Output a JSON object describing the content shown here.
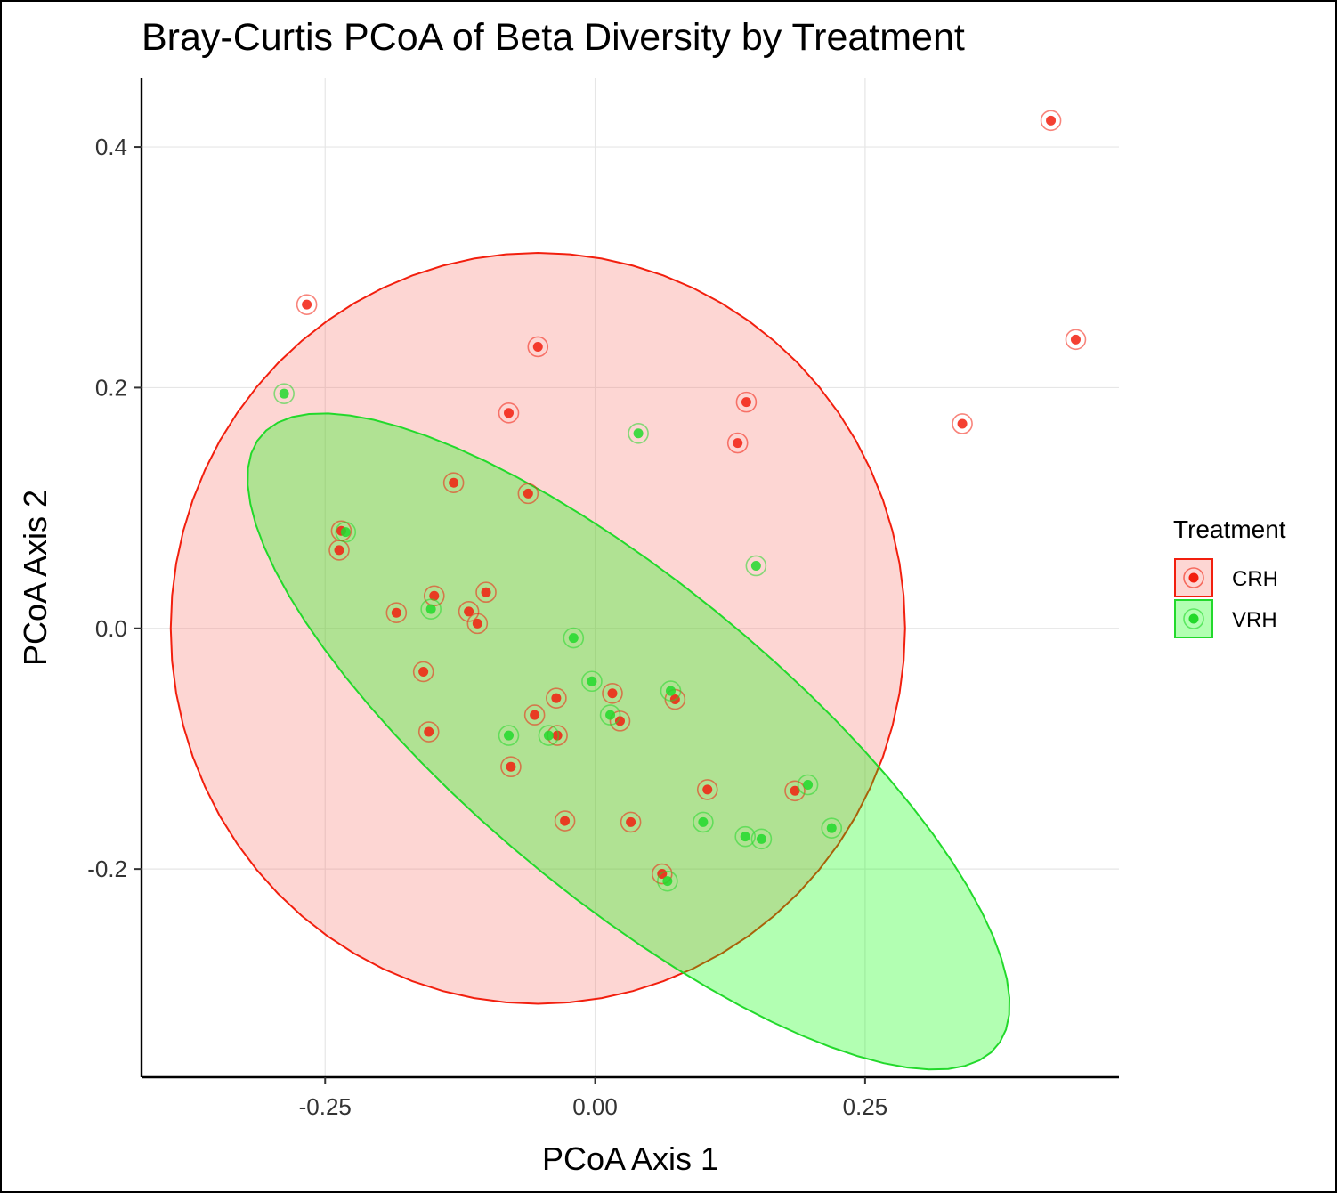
{
  "chart_data": {
    "type": "scatter",
    "title": "Bray-Curtis PCoA of Beta Diversity by Treatment",
    "xlabel": "PCoA Axis 1",
    "ylabel": "PCoA Axis 2",
    "xlim": [
      -0.42,
      0.485
    ],
    "ylim": [
      -0.373,
      0.457
    ],
    "x_ticks": [
      -0.25,
      0.0,
      0.25
    ],
    "x_tick_labels": [
      "-0.25",
      "0.00",
      "0.25"
    ],
    "y_ticks": [
      -0.2,
      0.0,
      0.2,
      0.4
    ],
    "y_tick_labels": [
      "-0.2",
      "0.0",
      "0.2",
      "0.4"
    ],
    "grid": true,
    "legend": {
      "title": "Treatment",
      "placement": "right"
    },
    "series": [
      {
        "name": "CRH",
        "color": "#f8766d",
        "point_color": "#f21f0e",
        "ellipse": {
          "center": [
            -0.053,
            0.0
          ],
          "radii": [
            0.34,
            0.312
          ],
          "angle_deg": 0
        },
        "points": [
          [
            0.422,
            0.422
          ],
          [
            0.445,
            0.24
          ],
          [
            0.34,
            0.17
          ],
          [
            -0.267,
            0.269
          ],
          [
            -0.053,
            0.234
          ],
          [
            -0.08,
            0.179
          ],
          [
            0.14,
            0.188
          ],
          [
            0.132,
            0.154
          ],
          [
            -0.131,
            0.121
          ],
          [
            -0.062,
            0.112
          ],
          [
            -0.235,
            0.081
          ],
          [
            -0.237,
            0.065
          ],
          [
            -0.149,
            0.027
          ],
          [
            -0.101,
            0.03
          ],
          [
            -0.184,
            0.013
          ],
          [
            -0.117,
            0.014
          ],
          [
            -0.109,
            0.004
          ],
          [
            -0.159,
            -0.036
          ],
          [
            -0.036,
            -0.058
          ],
          [
            0.016,
            -0.054
          ],
          [
            0.074,
            -0.059
          ],
          [
            -0.056,
            -0.072
          ],
          [
            0.023,
            -0.077
          ],
          [
            -0.035,
            -0.089
          ],
          [
            -0.154,
            -0.086
          ],
          [
            -0.078,
            -0.115
          ],
          [
            0.104,
            -0.134
          ],
          [
            0.185,
            -0.135
          ],
          [
            -0.028,
            -0.16
          ],
          [
            0.033,
            -0.161
          ],
          [
            0.062,
            -0.204
          ]
        ]
      },
      {
        "name": "VRH",
        "color": "#00ff00",
        "point_color": "#22d92b",
        "ellipse": {
          "center": [
            0.031,
            -0.094
          ],
          "radii": [
            0.425,
            0.135
          ],
          "angle_deg": -36
        },
        "points": [
          [
            -0.288,
            0.195
          ],
          [
            0.04,
            0.162
          ],
          [
            -0.231,
            0.08
          ],
          [
            0.149,
            0.052
          ],
          [
            -0.152,
            0.016
          ],
          [
            -0.02,
            -0.008
          ],
          [
            -0.003,
            -0.044
          ],
          [
            0.07,
            -0.052
          ],
          [
            0.014,
            -0.072
          ],
          [
            -0.08,
            -0.089
          ],
          [
            -0.043,
            -0.089
          ],
          [
            0.197,
            -0.13
          ],
          [
            0.1,
            -0.161
          ],
          [
            0.139,
            -0.173
          ],
          [
            0.154,
            -0.175
          ],
          [
            0.219,
            -0.166
          ],
          [
            0.067,
            -0.21
          ]
        ]
      }
    ]
  }
}
